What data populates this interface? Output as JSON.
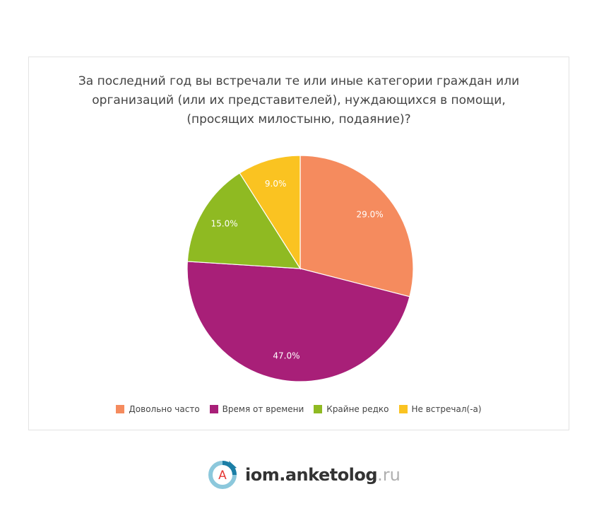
{
  "chart_data": {
    "type": "pie",
    "title": "За последний год вы встречали те или иные категории граждан или\nорганизаций (или их представителей), нуждающихся в помощи,\n(просящих милостыню, подаяние)?",
    "slices": [
      {
        "label": "Довольно часто",
        "value": 29.0,
        "display": "29.0%",
        "color": "#F58B5E"
      },
      {
        "label": "Время от времени",
        "value": 47.0,
        "display": "47.0%",
        "color": "#A81F78"
      },
      {
        "label": "Крайне редко",
        "value": 15.0,
        "display": "15.0%",
        "color": "#8FBA22"
      },
      {
        "label": "Не встречал(-а)",
        "value": 9.0,
        "display": "9.0%",
        "color": "#FAC321"
      }
    ],
    "legend_position": "bottom"
  },
  "footer": {
    "brand_main": "iom.anketolog",
    "brand_tld": ".ru",
    "logo_letter": "A"
  }
}
